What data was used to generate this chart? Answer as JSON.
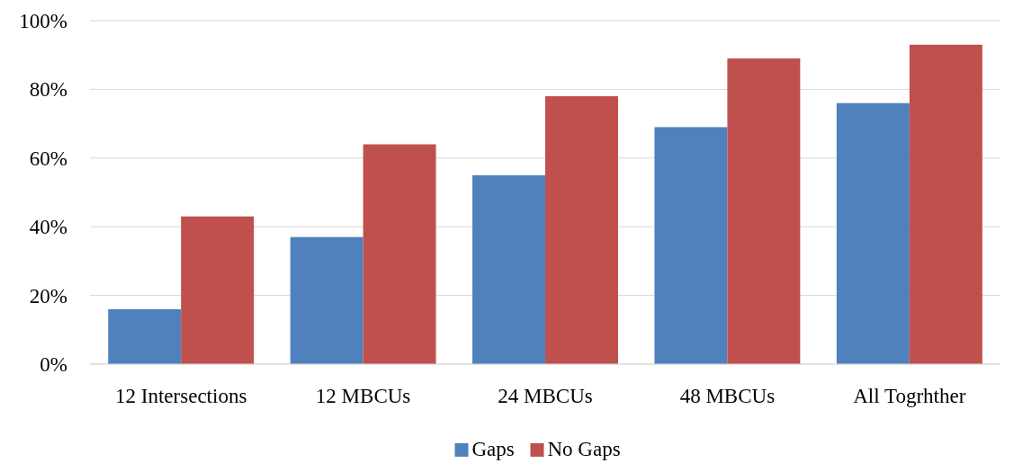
{
  "chart_data": {
    "type": "bar",
    "categories": [
      "12 Intersections",
      "12 MBCUs",
      "24 MBCUs",
      "48 MBCUs",
      "All Togrhther"
    ],
    "series": [
      {
        "name": "Gaps",
        "color": "#4f81bd",
        "values": [
          16,
          37,
          55,
          69,
          76
        ]
      },
      {
        "name": "No Gaps",
        "color": "#c0504d",
        "values": [
          43,
          64,
          78,
          89,
          93
        ]
      }
    ],
    "ylim": [
      0,
      100
    ],
    "yticks": [
      {
        "value": 0,
        "label": "0%"
      },
      {
        "value": 20,
        "label": "20%"
      },
      {
        "value": 40,
        "label": "40%"
      },
      {
        "value": 60,
        "label": "60%"
      },
      {
        "value": 80,
        "label": "80%"
      },
      {
        "value": 100,
        "label": "100%"
      }
    ],
    "grid": "y",
    "legend": "bottom"
  }
}
